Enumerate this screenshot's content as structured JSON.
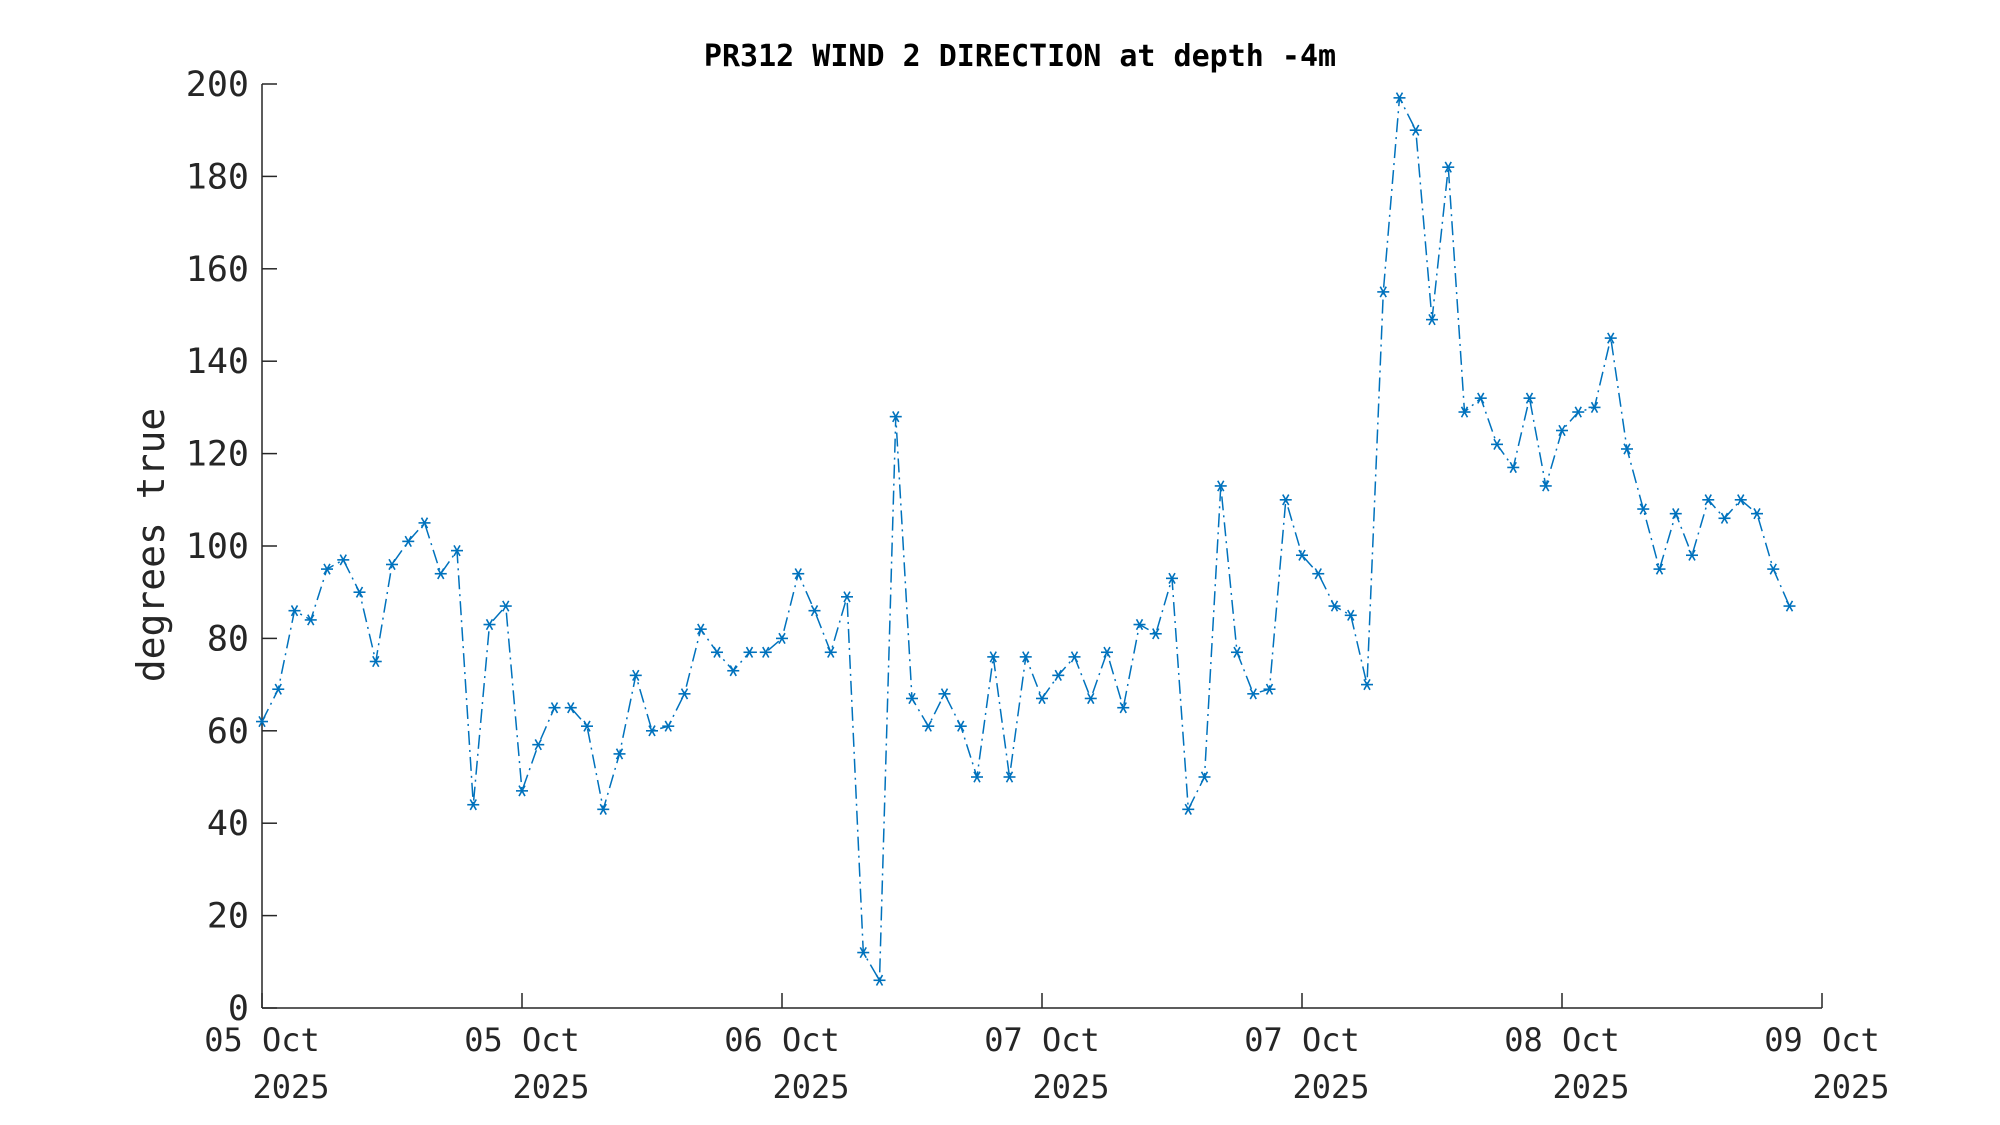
{
  "chart_data": {
    "type": "line",
    "title": "PR312 WIND 2 DIRECTION at depth -4m",
    "ylabel": "degrees true",
    "xlabel": "",
    "ylim": [
      0,
      200
    ],
    "yticks": [
      0,
      20,
      40,
      60,
      80,
      100,
      120,
      140,
      160,
      180,
      200
    ],
    "xlim": [
      "2025-10-05 00:00",
      "2025-10-09 00:00"
    ],
    "xticks": [
      {
        "line1": "05 Oct",
        "line2": "2025",
        "at": "2025-10-05 00:00"
      },
      {
        "line1": "05 Oct",
        "line2": "2025",
        "at": "2025-10-05 16:00"
      },
      {
        "line1": "06 Oct",
        "line2": "2025",
        "at": "2025-10-06 08:00"
      },
      {
        "line1": "07 Oct",
        "line2": "2025",
        "at": "2025-10-07 00:00"
      },
      {
        "line1": "07 Oct",
        "line2": "2025",
        "at": "2025-10-07 16:00"
      },
      {
        "line1": "08 Oct",
        "line2": "2025",
        "at": "2025-10-08 08:00"
      },
      {
        "line1": "09 Oct",
        "line2": "2025",
        "at": "2025-10-09 00:00"
      }
    ],
    "series": [
      {
        "color": "#0072BD",
        "line_style": "dash-dot",
        "marker": "asterisk",
        "sample_interval_minutes": 60,
        "start": "2025-10-05 00:00",
        "values": [
          62,
          69,
          86,
          84,
          95,
          97,
          90,
          75,
          96,
          101,
          105,
          94,
          99,
          44,
          83,
          87,
          47,
          57,
          65,
          65,
          61,
          43,
          55,
          72,
          60,
          61,
          68,
          82,
          77,
          73,
          77,
          77,
          80,
          94,
          86,
          77,
          89,
          12,
          6,
          128,
          67,
          61,
          68,
          61,
          50,
          76,
          50,
          76,
          67,
          72,
          76,
          67,
          77,
          65,
          83,
          81,
          93,
          43,
          50,
          113,
          77,
          68,
          69,
          110,
          98,
          94,
          87,
          85,
          70,
          155,
          197,
          190,
          149,
          182,
          129,
          132,
          122,
          117,
          132,
          113,
          125,
          129,
          130,
          145,
          121,
          108,
          95,
          107,
          98,
          110,
          106,
          110,
          107,
          95,
          87
        ]
      }
    ]
  }
}
